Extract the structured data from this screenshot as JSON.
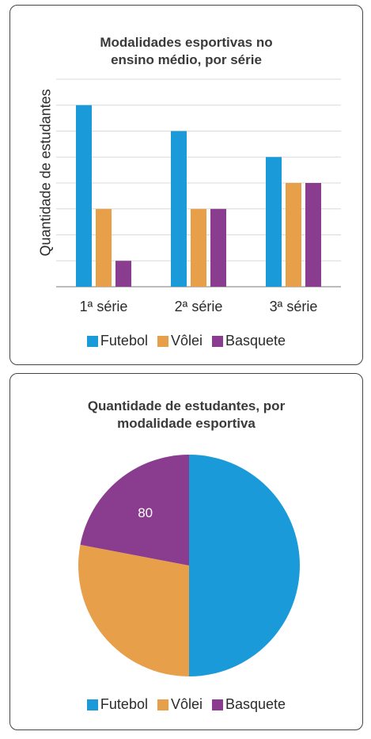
{
  "colors": {
    "futebol": "#1a9ad9",
    "volei": "#e89f4a",
    "basquete": "#8a3d8f",
    "grid": "#d9d9d9",
    "axis": "#a6a6a6"
  },
  "chart_data": [
    {
      "type": "bar",
      "title_lines": [
        "Modalidades esportivas no",
        "ensino médio, por série"
      ],
      "ylabel": "Quantidade de estudantes",
      "xlabel": "",
      "categories": [
        "1ª série",
        "2ª série",
        "3ª série"
      ],
      "series": [
        {
          "name": "Futebol",
          "values": [
            7,
            6,
            5
          ]
        },
        {
          "name": "Vôlei",
          "values": [
            3,
            3,
            4
          ]
        },
        {
          "name": "Basquete",
          "values": [
            1,
            3,
            4
          ]
        }
      ],
      "ylim": [
        0,
        8
      ],
      "grid": true,
      "legend": "bottom",
      "y_tick_labels_shown": false
    },
    {
      "type": "pie",
      "title_lines": [
        "Quantidade de estudantes, por",
        "modalidade esportiva"
      ],
      "slices": [
        {
          "name": "Futebol",
          "value": 50
        },
        {
          "name": "Vôlei",
          "value": 28
        },
        {
          "name": "Basquete",
          "value": 22,
          "label": "80"
        }
      ],
      "legend": "bottom"
    }
  ]
}
